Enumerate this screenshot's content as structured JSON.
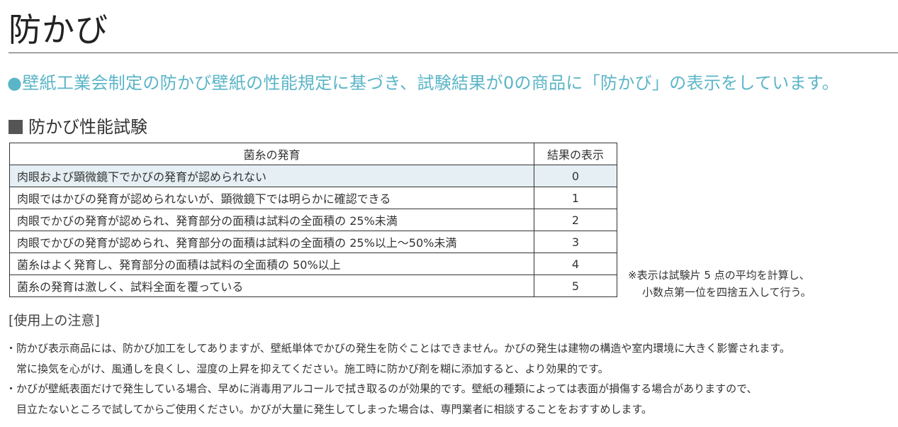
{
  "title": "防かび",
  "lead": "●壁紙工業会制定の防かび壁紙の性能規定に基づき、試験結果が0の商品に「防かび」の表示をしています。",
  "accent_color": "#5bb5c8",
  "section": {
    "icon": "square-bullet-icon",
    "heading": "防かび性能試験"
  },
  "table": {
    "headers": [
      "菌糸の発育",
      "結果の表示"
    ],
    "rows": [
      {
        "desc": "肉眼および顕微鏡下でかびの発育が認められない",
        "value": "0"
      },
      {
        "desc": "肉眼ではかびの発育が認められないが、顕微鏡下では明らかに確認できる",
        "value": "1"
      },
      {
        "desc": "肉眼でかびの発育が認められ、発育部分の面積は試料の全面積の 25%未満",
        "value": "2"
      },
      {
        "desc": "肉眼でかびの発育が認められ、発育部分の面積は試料の全面積の 25%以上～50%未満",
        "value": "3"
      },
      {
        "desc": "菌糸はよく発育し、発育部分の面積は試料の全面積の 50%以上",
        "value": "4"
      },
      {
        "desc": "菌糸の発育は激しく、試料全面を覆っている",
        "value": "5"
      }
    ]
  },
  "footnote": [
    "※表示は試験片 5 点の平均を計算し、",
    "小数点第一位を四捨五入して行う。"
  ],
  "notes": {
    "heading": "[使用上の注意]",
    "items": [
      {
        "line1": "・防かび表示商品には、防かび加工をしてありますが、壁紙単体でかびの発生を防ぐことはできません。かびの発生は建物の構造や室内環境に大きく影響されます。",
        "line2": "常に換気を心がけ、風通しを良くし、湿度の上昇を抑えてください。施工時に防かび剤を糊に添加すると、より効果的です。"
      },
      {
        "line1": "・かびが壁紙表面だけで発生している場合、早めに消毒用アルコールで拭き取るのが効果的です。壁紙の種類によっては表面が損傷する場合がありますので、",
        "line2": "目立たないところで試してからご使用ください。かびが大量に発生してしまった場合は、専門業者に相談することをおすすめします。"
      }
    ]
  }
}
